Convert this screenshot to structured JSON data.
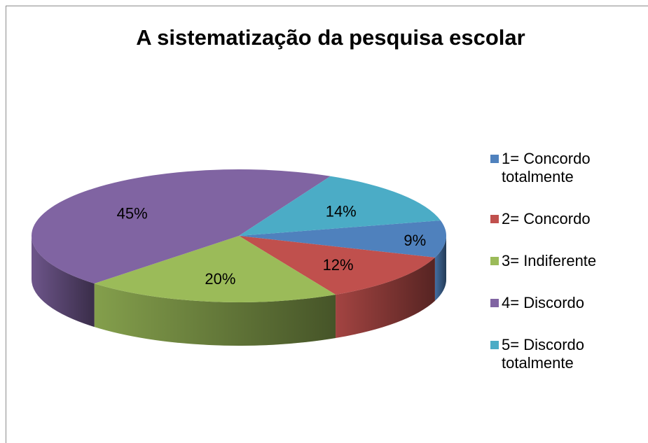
{
  "chart_data": {
    "type": "pie3d",
    "title": "A sistematização da pesquisa escolar",
    "categories": [
      "1= Concordo totalmente",
      "2= Concordo",
      "3= Indiferente",
      "4= Discordo",
      "5= Discordo totalmente"
    ],
    "values": [
      9,
      12,
      20,
      45,
      14
    ],
    "value_labels": [
      "9%",
      "12%",
      "20%",
      "45%",
      "14%"
    ],
    "colors": [
      "#4f81bd",
      "#c0504d",
      "#9bbb59",
      "#8064a2",
      "#4bacc6"
    ],
    "legend": "right"
  }
}
